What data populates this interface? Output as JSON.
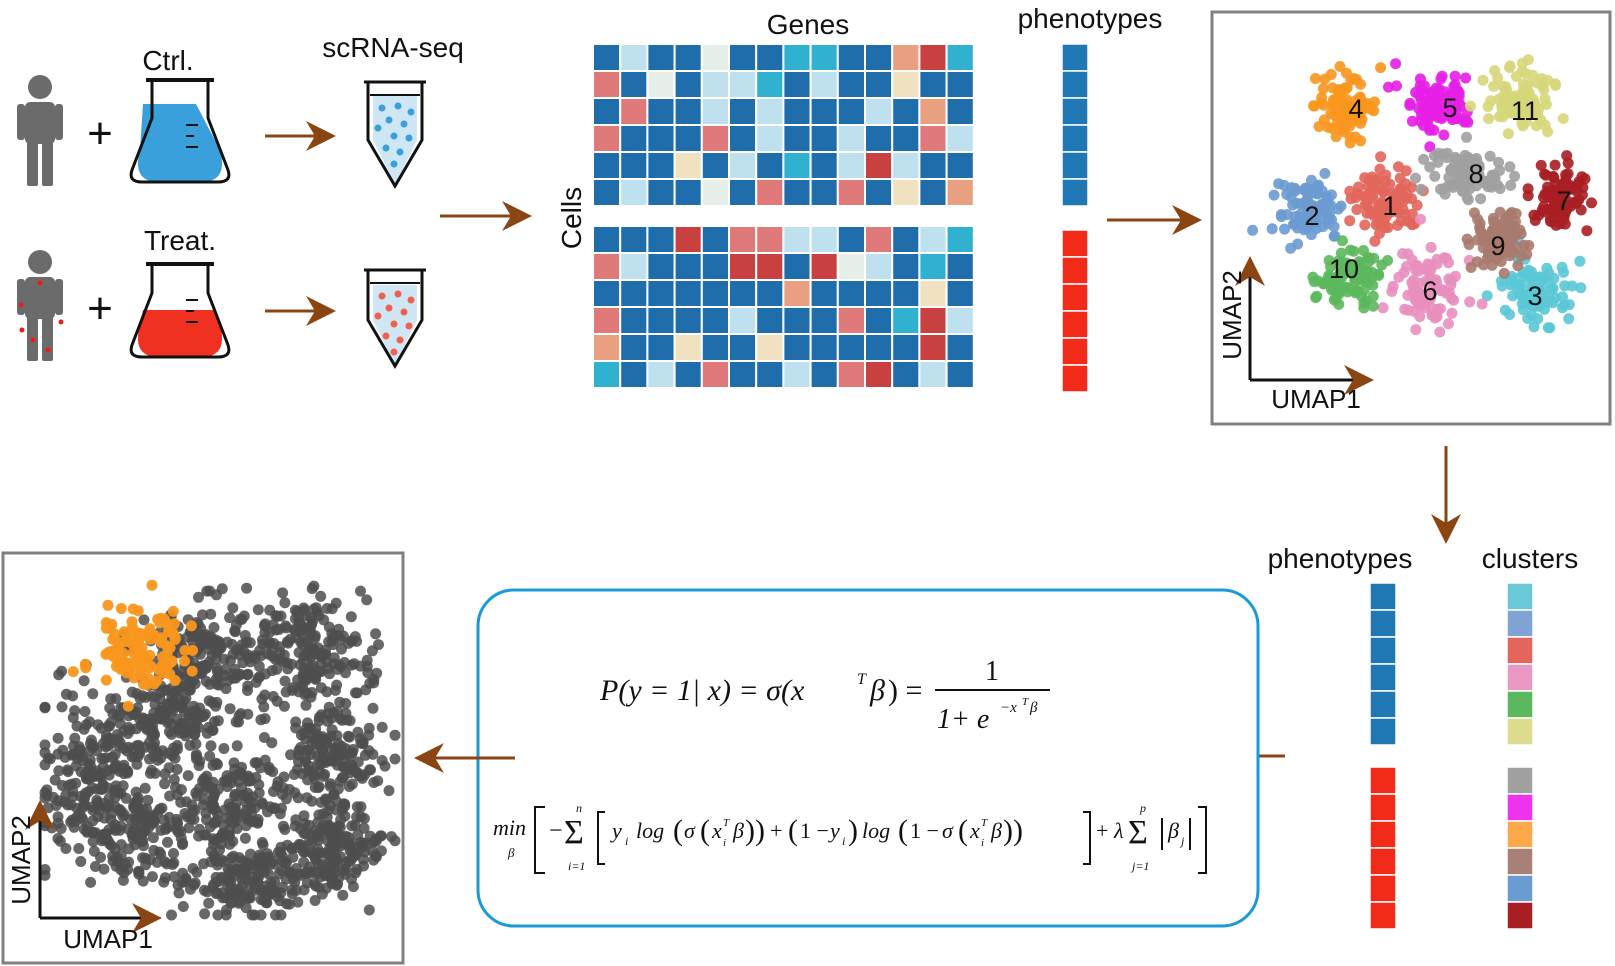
{
  "labels": {
    "ctrl": "Ctrl.",
    "treat": "Treat.",
    "scrna": "scRNA-seq",
    "genes": "Genes",
    "cells": "Cells",
    "phenotypes_top": "phenotypes",
    "phenotypes_bottom": "phenotypes",
    "clusters": "clusters",
    "umap1_top": "UMAP1",
    "umap2_top": "UMAP2",
    "umap1_bottom": "UMAP1",
    "umap2_bottom": "UMAP2",
    "plus1": "+",
    "plus2": "+"
  },
  "colors": {
    "arrow": "#8B4513",
    "panel_border": "#808080",
    "formula_border": "#1A9AD6",
    "ctrl_liquid": "#3AA0DC",
    "treat_liquid": "#F03020",
    "person": "#6b6b6b",
    "phenotype_ctrl": "#1F77B4",
    "phenotype_treat": "#F22A1A",
    "highlight": "#F8961E",
    "grey_points": "#4D4D4D"
  },
  "heatmap": {
    "palette": [
      "#1F6DAA",
      "#BFE0EF",
      "#E07A7A",
      "#C8403F",
      "#F0E2C0",
      "#2FB1CF",
      "#E9A080",
      "#E5EFE8"
    ],
    "top_rows": [
      [
        0,
        1,
        0,
        0,
        7,
        0,
        0,
        5,
        5,
        0,
        0,
        6,
        3,
        5
      ],
      [
        2,
        0,
        7,
        0,
        1,
        1,
        5,
        0,
        1,
        0,
        0,
        4,
        0,
        0
      ],
      [
        0,
        2,
        0,
        0,
        1,
        0,
        1,
        0,
        0,
        0,
        1,
        0,
        6,
        0
      ],
      [
        2,
        0,
        0,
        0,
        2,
        0,
        1,
        0,
        0,
        1,
        0,
        0,
        2,
        1
      ],
      [
        0,
        0,
        0,
        4,
        0,
        1,
        0,
        5,
        0,
        1,
        3,
        1,
        0,
        0
      ],
      [
        0,
        1,
        0,
        0,
        7,
        0,
        2,
        0,
        0,
        2,
        0,
        4,
        0,
        6
      ]
    ],
    "bottom_rows": [
      [
        0,
        0,
        0,
        3,
        0,
        2,
        2,
        1,
        1,
        0,
        2,
        0,
        1,
        5
      ],
      [
        2,
        1,
        0,
        0,
        0,
        3,
        3,
        0,
        3,
        7,
        1,
        0,
        5,
        0
      ],
      [
        0,
        0,
        0,
        0,
        0,
        0,
        0,
        6,
        0,
        0,
        0,
        0,
        4,
        0
      ],
      [
        2,
        0,
        0,
        0,
        0,
        1,
        0,
        0,
        0,
        2,
        0,
        5,
        3,
        1
      ],
      [
        6,
        0,
        0,
        4,
        0,
        0,
        4,
        0,
        0,
        0,
        0,
        0,
        3,
        0
      ],
      [
        5,
        0,
        1,
        0,
        2,
        0,
        0,
        1,
        0,
        2,
        3,
        0,
        1,
        0
      ]
    ]
  },
  "clusters_top": [
    {
      "id": "1",
      "color": "#E2665B"
    },
    {
      "id": "2",
      "color": "#6C9BD1"
    },
    {
      "id": "3",
      "color": "#5BC8D6"
    },
    {
      "id": "4",
      "color": "#F8961E"
    },
    {
      "id": "5",
      "color": "#E61EE6"
    },
    {
      "id": "6",
      "color": "#E88FBE"
    },
    {
      "id": "7",
      "color": "#A81E23"
    },
    {
      "id": "8",
      "color": "#A0A0A0"
    },
    {
      "id": "9",
      "color": "#A87A6E"
    },
    {
      "id": "10",
      "color": "#5CB85C"
    },
    {
      "id": "11",
      "color": "#D6D67A"
    }
  ],
  "legend_clusters": [
    "#6CCAD8",
    "#7FA3D4",
    "#E2665B",
    "#E999C3",
    "#5CB85C",
    "#DCDC8C",
    "#A0A0A0",
    "#EE33EE",
    "#FBA94A",
    "#A88078",
    "#6C9BD1",
    "#A81E23"
  ],
  "formula": {
    "f1_lhs": "P(y = 1| x) = σ(x",
    "sup_T": "T",
    "beta": "β",
    "eq": ") =",
    "one": "1",
    "den": "1+ e",
    "exp": "−x",
    "min": "min",
    "min_sub": "β",
    "l2": "[ −Σ [ y",
    "i": "i",
    "log": "log",
    "sigma": "σ",
    "one_minus": "1 −",
    "lambda": "λ",
    "n": "n",
    "p": "p",
    "i1": "i=1",
    "j1": "j=1",
    "j": "j"
  }
}
